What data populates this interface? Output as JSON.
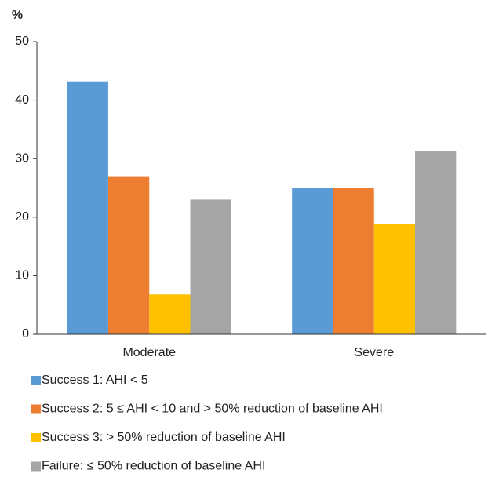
{
  "chart_data": {
    "type": "bar",
    "ylabel": "%",
    "categories": [
      "Moderate",
      "Severe"
    ],
    "series": [
      {
        "name": "Success 1: AHI < 5",
        "color": "#5b9bd5",
        "values": [
          43.2,
          25
        ]
      },
      {
        "name": "Success 2: 5 ≤ AHI < 10 and > 50% reduction of baseline AHI",
        "color": "#ed7d31",
        "values": [
          27,
          25
        ]
      },
      {
        "name": "Success 3: > 50% reduction of baseline AHI",
        "color": "#ffc000",
        "values": [
          6.8,
          18.8
        ]
      },
      {
        "name": "Failure: ≤ 50% reduction of baseline AHI",
        "color": "#a5a5a5",
        "values": [
          23,
          31.3
        ]
      }
    ],
    "ylim": [
      0,
      50
    ],
    "yticks": [
      0,
      10,
      20,
      30,
      40,
      50
    ],
    "grid": false,
    "legend": "bottom"
  }
}
